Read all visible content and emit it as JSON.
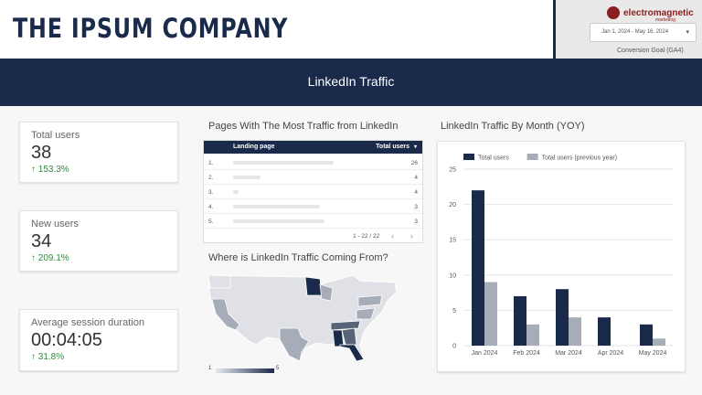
{
  "header": {
    "company": "THE IPSUM COMPANY",
    "brand_name": "electromagnetic",
    "brand_sub": "marketing",
    "date_range": "Jan 1, 2024 - May 16, 2024",
    "conversion_goal": "Conversion Goal (GA4)",
    "banner_title": "LinkedIn Traffic"
  },
  "kpis": [
    {
      "label": "Total users",
      "value": "38",
      "delta": "153.3%"
    },
    {
      "label": "New users",
      "value": "34",
      "delta": "209.1%"
    },
    {
      "label": "Average session duration",
      "value": "00:04:05",
      "delta": "31.8%"
    }
  ],
  "pages_table": {
    "title": "Pages With The Most Traffic from LinkedIn",
    "col_page": "Landing page",
    "col_users": "Total users",
    "rows": [
      {
        "num": "1.",
        "value": "26"
      },
      {
        "num": "2.",
        "value": "4"
      },
      {
        "num": "3.",
        "value": "4"
      },
      {
        "num": "4.",
        "value": "3"
      },
      {
        "num": "5.",
        "value": "3"
      }
    ],
    "pagination": "1 - 22 / 22"
  },
  "map": {
    "title": "Where is LinkedIn Traffic Coming From?",
    "scale_min": "1",
    "scale_max": "5",
    "color_low": "#e6e8ee",
    "color_high": "#1a2a4a"
  },
  "chart_title": "LinkedIn Traffic By Month (YOY)",
  "chart_data": {
    "type": "bar",
    "categories": [
      "Jan 2024",
      "Feb 2024",
      "Mar 2024",
      "Apr 2024",
      "May 2024"
    ],
    "series": [
      {
        "name": "Total users",
        "values": [
          22,
          7,
          8,
          4,
          3
        ],
        "color": "#1a2a4a"
      },
      {
        "name": "Total users (previous year)",
        "values": [
          9,
          3,
          4,
          0,
          1
        ],
        "color": "#a7adb8"
      }
    ],
    "yticks": [
      "0",
      "5",
      "10",
      "15",
      "20",
      "25"
    ],
    "ylim": [
      0,
      25
    ],
    "grid": true,
    "legend": "top-left"
  }
}
